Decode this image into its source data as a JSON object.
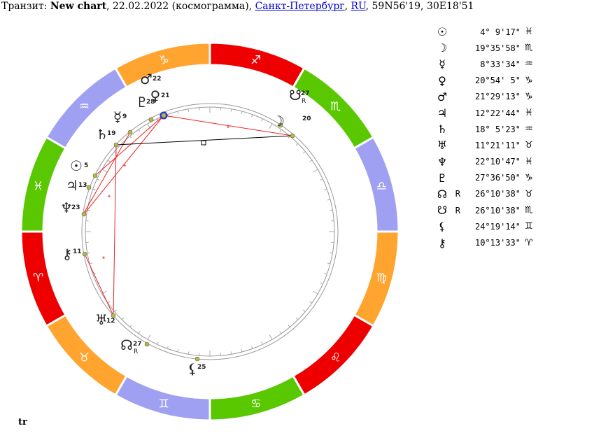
{
  "header": {
    "prefix": "Транзит: ",
    "chart_name": "New chart",
    "date_text": ", 22.02.2022 (космограмма), ",
    "city": "Санкт-Петербург",
    "sep": ", ",
    "country": "RU",
    "coords": ", 59N56'19, 30E18'51"
  },
  "footer_label": "tr",
  "colors": {
    "fire": "#ee0000",
    "earth": "#ffa42e",
    "air": "#a0a0f2",
    "water": "#5ac800",
    "aspect_opposition": "#ee2222",
    "aspect_other": "#000000",
    "planet_dot": "#b8b840",
    "highlight": "#1a2ecc"
  },
  "zodiac": [
    {
      "name": "sagittarius",
      "glyph": "♐",
      "color": "#ee0000"
    },
    {
      "name": "scorpio",
      "glyph": "♏",
      "color": "#5ac800"
    },
    {
      "name": "libra",
      "glyph": "♎",
      "color": "#a0a0f2"
    },
    {
      "name": "virgo",
      "glyph": "♍",
      "color": "#ffa42e"
    },
    {
      "name": "leo",
      "glyph": "♌",
      "color": "#ee0000"
    },
    {
      "name": "cancer",
      "glyph": "♋",
      "color": "#5ac800"
    },
    {
      "name": "gemini",
      "glyph": "♊",
      "color": "#a0a0f2"
    },
    {
      "name": "taurus",
      "glyph": "♉",
      "color": "#ffa42e"
    },
    {
      "name": "aries",
      "glyph": "♈",
      "color": "#ee0000"
    },
    {
      "name": "pisces",
      "glyph": "♓",
      "color": "#5ac800"
    },
    {
      "name": "aquarius",
      "glyph": "♒",
      "color": "#a0a0f2"
    },
    {
      "name": "capricorn",
      "glyph": "♑",
      "color": "#ffa42e"
    }
  ],
  "wheel_planets": [
    {
      "name": "mars",
      "glyph": "♂",
      "deg": "22",
      "retro": ""
    },
    {
      "name": "venus",
      "glyph": "♀",
      "deg": "21",
      "retro": ""
    },
    {
      "name": "pluto",
      "glyph": "♇",
      "deg": "28",
      "retro": ""
    },
    {
      "name": "mercury",
      "glyph": "☿",
      "deg": "9",
      "retro": ""
    },
    {
      "name": "saturn",
      "glyph": "♄",
      "deg": "19",
      "retro": ""
    },
    {
      "name": "sun",
      "glyph": "☉",
      "deg": "5",
      "retro": ""
    },
    {
      "name": "jupiter",
      "glyph": "♃",
      "deg": "13",
      "retro": ""
    },
    {
      "name": "neptune",
      "glyph": "♆",
      "deg": "23",
      "retro": ""
    },
    {
      "name": "chiron",
      "glyph": "⚷",
      "deg": "11",
      "retro": ""
    },
    {
      "name": "uranus",
      "glyph": "♅",
      "deg": "12",
      "retro": ""
    },
    {
      "name": "north-node",
      "glyph": "☊",
      "deg": "27",
      "retro": "R"
    },
    {
      "name": "lilith",
      "glyph": "⚸",
      "deg": "25",
      "retro": ""
    },
    {
      "name": "south-node",
      "glyph": "☋",
      "deg": "27",
      "retro": "R"
    },
    {
      "name": "moon",
      "glyph": "☽",
      "deg": "20",
      "retro": ""
    }
  ],
  "positions": [
    {
      "name": "sun",
      "glyph": "☉",
      "retro": "",
      "deg": "4° 9'17\"",
      "sign": "♓"
    },
    {
      "name": "moon",
      "glyph": "☽",
      "retro": "",
      "deg": "19°35'58\"",
      "sign": "♏"
    },
    {
      "name": "mercury",
      "glyph": "☿",
      "retro": "",
      "deg": "8°33'34\"",
      "sign": "♒"
    },
    {
      "name": "venus",
      "glyph": "♀",
      "retro": "",
      "deg": "20°54' 5\"",
      "sign": "♑"
    },
    {
      "name": "mars",
      "glyph": "♂",
      "retro": "",
      "deg": "21°29'13\"",
      "sign": "♑"
    },
    {
      "name": "jupiter",
      "glyph": "♃",
      "retro": "",
      "deg": "12°22'44\"",
      "sign": "♓"
    },
    {
      "name": "saturn",
      "glyph": "♄",
      "retro": "",
      "deg": "18° 5'23\"",
      "sign": "♒"
    },
    {
      "name": "uranus",
      "glyph": "♅",
      "retro": "",
      "deg": "11°21'11\"",
      "sign": "♉"
    },
    {
      "name": "neptune",
      "glyph": "♆",
      "retro": "",
      "deg": "22°10'47\"",
      "sign": "♓"
    },
    {
      "name": "pluto",
      "glyph": "♇",
      "retro": "",
      "deg": "27°36'50\"",
      "sign": "♑"
    },
    {
      "name": "north-node",
      "glyph": "☊",
      "retro": "R",
      "deg": "26°10'38\"",
      "sign": "♉"
    },
    {
      "name": "south-node",
      "glyph": "☋",
      "retro": "R",
      "deg": "26°10'38\"",
      "sign": "♏"
    },
    {
      "name": "lilith",
      "glyph": "⚸",
      "retro": "",
      "deg": "24°19'14\"",
      "sign": "♊"
    },
    {
      "name": "chiron",
      "glyph": "⚷",
      "retro": "",
      "deg": "10°13'33\"",
      "sign": "♈"
    }
  ]
}
